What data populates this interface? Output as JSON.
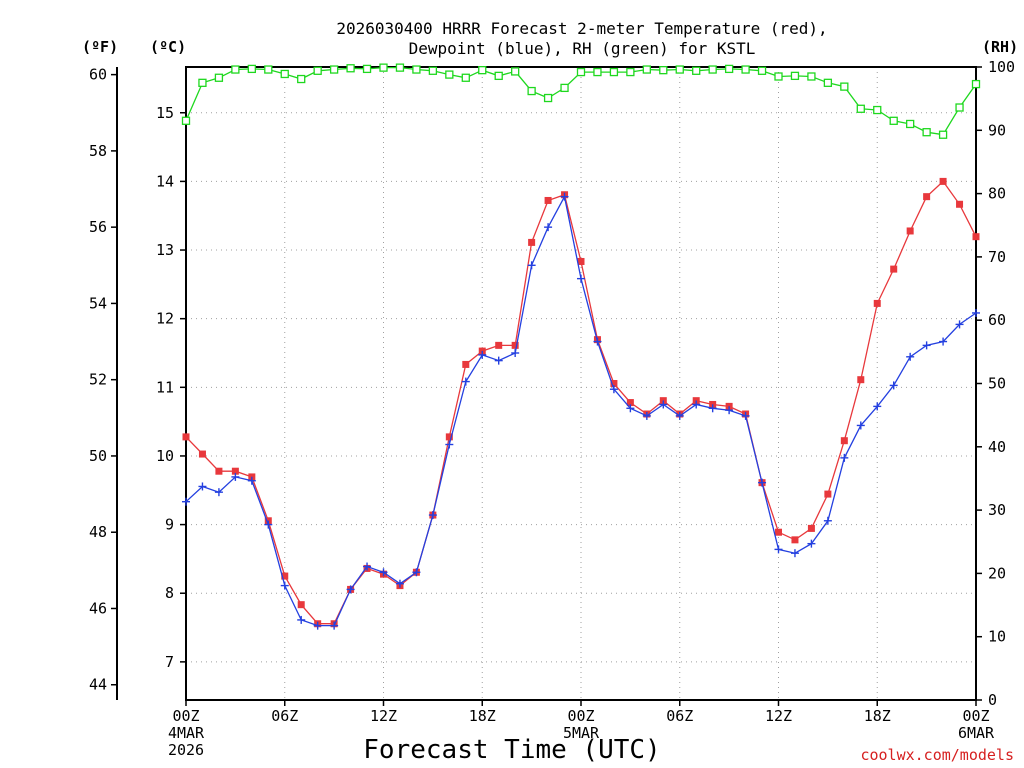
{
  "chart_data": {
    "type": "line",
    "title_line1": "2026030400 HRRR Forecast 2-meter Temperature (red),",
    "title_line2": "Dewpoint (blue), RH (green) for KSTL",
    "xlabel": "Forecast Time (UTC)",
    "credit": "coolwx.com/models",
    "unit_left_f": "(ºF)",
    "unit_left_c": "(ºC)",
    "unit_right": "(RH)",
    "x_range_hours": [
      0,
      48
    ],
    "x_ticks": [
      {
        "hour": 0,
        "lines": [
          "00Z",
          "4MAR",
          "2026"
        ]
      },
      {
        "hour": 6,
        "lines": [
          "06Z"
        ]
      },
      {
        "hour": 12,
        "lines": [
          "12Z"
        ]
      },
      {
        "hour": 18,
        "lines": [
          "18Z"
        ]
      },
      {
        "hour": 24,
        "lines": [
          "00Z",
          "5MAR"
        ]
      },
      {
        "hour": 30,
        "lines": [
          "06Z"
        ]
      },
      {
        "hour": 36,
        "lines": [
          "12Z"
        ]
      },
      {
        "hour": 42,
        "lines": [
          "18Z"
        ]
      },
      {
        "hour": 48,
        "lines": [
          "00Z",
          "6MAR"
        ]
      }
    ],
    "y_f_range": [
      43.6,
      60.2
    ],
    "y_f_ticks": [
      "44",
      "46",
      "48",
      "50",
      "52",
      "54",
      "56",
      "58",
      "60"
    ],
    "y_c_ticks": [
      "7",
      "8",
      "9",
      "10",
      "11",
      "12",
      "13",
      "14",
      "15"
    ],
    "y_rh_range": [
      0,
      100
    ],
    "y_rh_ticks": [
      "0",
      "10",
      "20",
      "30",
      "40",
      "50",
      "60",
      "70",
      "80",
      "90",
      "100"
    ],
    "series": [
      {
        "name": "Temperature",
        "color": "#e8383c",
        "unit": "F",
        "marker": "filled-square",
        "values": [
          50.5,
          50.05,
          49.6,
          49.6,
          49.45,
          48.3,
          46.85,
          46.1,
          45.6,
          45.6,
          46.5,
          47.05,
          46.9,
          46.6,
          46.95,
          48.45,
          50.5,
          52.4,
          52.75,
          52.9,
          52.9,
          55.6,
          56.7,
          56.85,
          55.1,
          53.05,
          51.9,
          51.4,
          51.1,
          51.45,
          51.1,
          51.45,
          51.35,
          51.3,
          51.1,
          49.3,
          48.0,
          47.8,
          48.1,
          49.0,
          50.4,
          52.0,
          54.0,
          54.9,
          55.9,
          56.8,
          57.2,
          56.6,
          55.75
        ]
      },
      {
        "name": "Dewpoint",
        "color": "#2440e0",
        "unit": "F",
        "marker": "plus",
        "values": [
          48.8,
          49.2,
          49.05,
          49.45,
          49.35,
          48.2,
          46.6,
          45.7,
          45.55,
          45.55,
          46.5,
          47.1,
          46.95,
          46.65,
          46.95,
          48.45,
          50.3,
          51.95,
          52.65,
          52.5,
          52.7,
          55.0,
          56.0,
          56.8,
          54.65,
          53.0,
          51.75,
          51.25,
          51.05,
          51.35,
          51.05,
          51.35,
          51.25,
          51.2,
          51.05,
          49.3,
          47.55,
          47.45,
          47.7,
          48.3,
          49.95,
          50.8,
          51.3,
          51.85,
          52.6,
          52.9,
          53.0,
          53.45,
          53.75
        ]
      },
      {
        "name": "RH",
        "color": "#1ed81e",
        "unit": "%",
        "marker": "open-square",
        "values": [
          91.5,
          97.5,
          98.3,
          99.6,
          99.7,
          99.6,
          98.9,
          98.1,
          99.4,
          99.6,
          99.8,
          99.7,
          99.9,
          99.9,
          99.6,
          99.4,
          98.8,
          98.3,
          99.5,
          98.6,
          99.3,
          96.2,
          95.1,
          96.7,
          99.2,
          99.2,
          99.2,
          99.2,
          99.6,
          99.5,
          99.6,
          99.4,
          99.6,
          99.7,
          99.6,
          99.4,
          98.5,
          98.6,
          98.5,
          97.5,
          96.9,
          93.4,
          93.2,
          91.5,
          91.0,
          89.7,
          89.3,
          93.6,
          97.3
        ]
      }
    ]
  }
}
